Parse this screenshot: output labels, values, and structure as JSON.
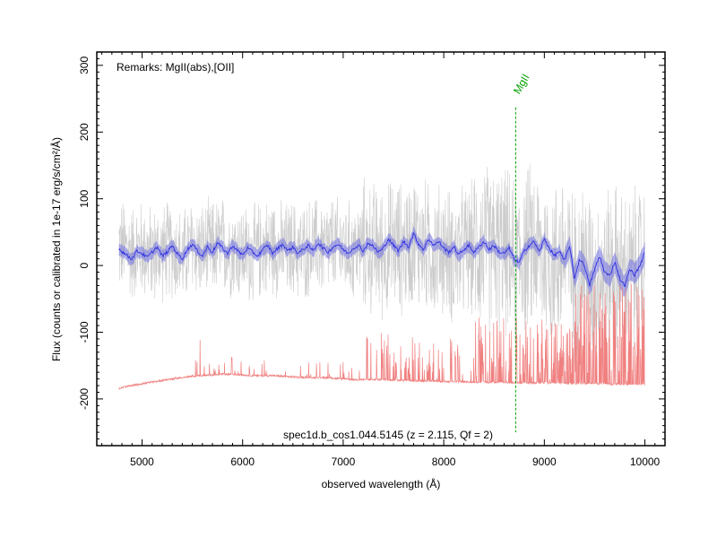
{
  "chart_data": {
    "type": "line",
    "title": "",
    "remarks": "Remarks: MgII(abs),[OII]",
    "spectrum_id": "spec1d.b_cos1.044.5145 (z = 2.115, Qf = 2)",
    "xlabel": "observed wavelength (Å)",
    "ylabel": "Flux (counts or calibrated in 1e-17 erg/s/cm²/Å)",
    "xlim": [
      4550,
      10200
    ],
    "ylim": [
      -270,
      320
    ],
    "xticks": [
      "5000",
      "6000",
      "7000",
      "8000",
      "9000",
      "10000"
    ],
    "yticks": [
      "-200",
      "-100",
      "0",
      "100",
      "200",
      "300"
    ],
    "line_marker": {
      "label": "MgII",
      "x": 8715,
      "y_top": 237,
      "y_bottom": -250,
      "color": "#00a000"
    },
    "series": [
      {
        "role": "raw",
        "color": "#cccccc",
        "x": [
          4770,
          4900,
          5000,
          5100,
          5200,
          5300,
          5400,
          5500,
          5600,
          5700,
          5800,
          5900,
          6000,
          6100,
          6200,
          6300,
          6400,
          6500,
          6600,
          6700,
          6800,
          6900,
          7000,
          7100,
          7200,
          7300,
          7400,
          7500,
          7600,
          7700,
          7800,
          7900,
          8000,
          8100,
          8200,
          8300,
          8400,
          8500,
          8600,
          8700,
          8800,
          8900,
          9000,
          9100,
          9200,
          9300,
          9400,
          9500,
          9600,
          9700,
          9800,
          9900,
          10000
        ],
        "y": [
          30,
          20,
          25,
          15,
          20,
          25,
          10,
          30,
          20,
          25,
          30,
          25,
          20,
          15,
          25,
          30,
          20,
          25,
          20,
          30,
          25,
          30,
          25,
          20,
          30,
          25,
          20,
          30,
          25,
          40,
          30,
          20,
          25,
          10,
          20,
          25,
          30,
          20,
          25,
          0,
          20,
          30,
          10,
          0,
          20,
          -20,
          10,
          -30,
          -10,
          0,
          -20,
          -10,
          0
        ]
      },
      {
        "role": "smoothed",
        "color": "#3030e0",
        "x": [
          4770,
          4850,
          4900,
          4950,
          5000,
          5050,
          5100,
          5150,
          5200,
          5250,
          5300,
          5350,
          5400,
          5450,
          5500,
          5550,
          5600,
          5650,
          5700,
          5750,
          5800,
          5850,
          5900,
          5950,
          6000,
          6050,
          6100,
          6150,
          6200,
          6250,
          6300,
          6350,
          6400,
          6450,
          6500,
          6550,
          6600,
          6650,
          6700,
          6750,
          6800,
          6850,
          6900,
          6950,
          7000,
          7050,
          7100,
          7150,
          7200,
          7250,
          7300,
          7350,
          7400,
          7450,
          7500,
          7550,
          7600,
          7650,
          7700,
          7750,
          7800,
          7850,
          7900,
          7950,
          8000,
          8050,
          8100,
          8150,
          8200,
          8250,
          8300,
          8350,
          8400,
          8450,
          8500,
          8550,
          8600,
          8650,
          8700,
          8750,
          8800,
          8850,
          8900,
          8950,
          9000,
          9050,
          9100,
          9150,
          9200,
          9250,
          9300,
          9350,
          9400,
          9450,
          9500,
          9550,
          9600,
          9650,
          9700,
          9750,
          9800,
          9850,
          9900,
          9950,
          10000
        ],
        "y": [
          25,
          15,
          10,
          22,
          18,
          12,
          20,
          28,
          14,
          20,
          30,
          18,
          10,
          24,
          32,
          22,
          14,
          28,
          20,
          34,
          26,
          18,
          30,
          22,
          16,
          26,
          20,
          14,
          24,
          30,
          18,
          26,
          32,
          22,
          28,
          18,
          24,
          30,
          22,
          34,
          26,
          20,
          28,
          32,
          24,
          18,
          26,
          30,
          22,
          34,
          28,
          20,
          26,
          40,
          30,
          22,
          36,
          28,
          48,
          32,
          24,
          40,
          30,
          36,
          26,
          20,
          28,
          16,
          24,
          30,
          20,
          28,
          36,
          24,
          30,
          20,
          18,
          26,
          10,
          4,
          22,
          30,
          36,
          20,
          40,
          26,
          14,
          22,
          6,
          30,
          -20,
          10,
          0,
          -30,
          -6,
          14,
          -10,
          -16,
          6,
          -20,
          -30,
          -6,
          -14,
          0,
          20
        ]
      },
      {
        "role": "sky",
        "color": "#f08080",
        "x": [
          4770,
          4800,
          4900,
          5000,
          5100,
          5200,
          5300,
          5400,
          5500,
          5600,
          5700,
          5800,
          5900,
          6000,
          6100,
          6200,
          6300,
          6400,
          6500,
          6600,
          6700,
          6800,
          6900,
          7000,
          7100,
          7200,
          7300,
          7400,
          7500,
          7600,
          7700,
          7800,
          7900,
          8000,
          8100,
          8200,
          8300,
          8400,
          8500,
          8600,
          8700,
          8800,
          8900,
          9000,
          9100,
          9200,
          9300,
          9400,
          9500,
          9600,
          9700,
          9800,
          9900,
          10000
        ],
        "y": [
          -185,
          -183,
          -180,
          -177,
          -175,
          -172,
          -170,
          -168,
          -166,
          -165,
          -164,
          -163,
          -163,
          -164,
          -165,
          -165,
          -165,
          -166,
          -167,
          -168,
          -168,
          -168,
          -169,
          -170,
          -171,
          -171,
          -171,
          -171,
          -172,
          -172,
          -173,
          -173,
          -173,
          -174,
          -174,
          -174,
          -175,
          -175,
          -175,
          -175,
          -176,
          -176,
          -176,
          -176,
          -176,
          -177,
          -177,
          -177,
          -177,
          -177,
          -178,
          -178,
          -178,
          -178
        ]
      }
    ]
  }
}
